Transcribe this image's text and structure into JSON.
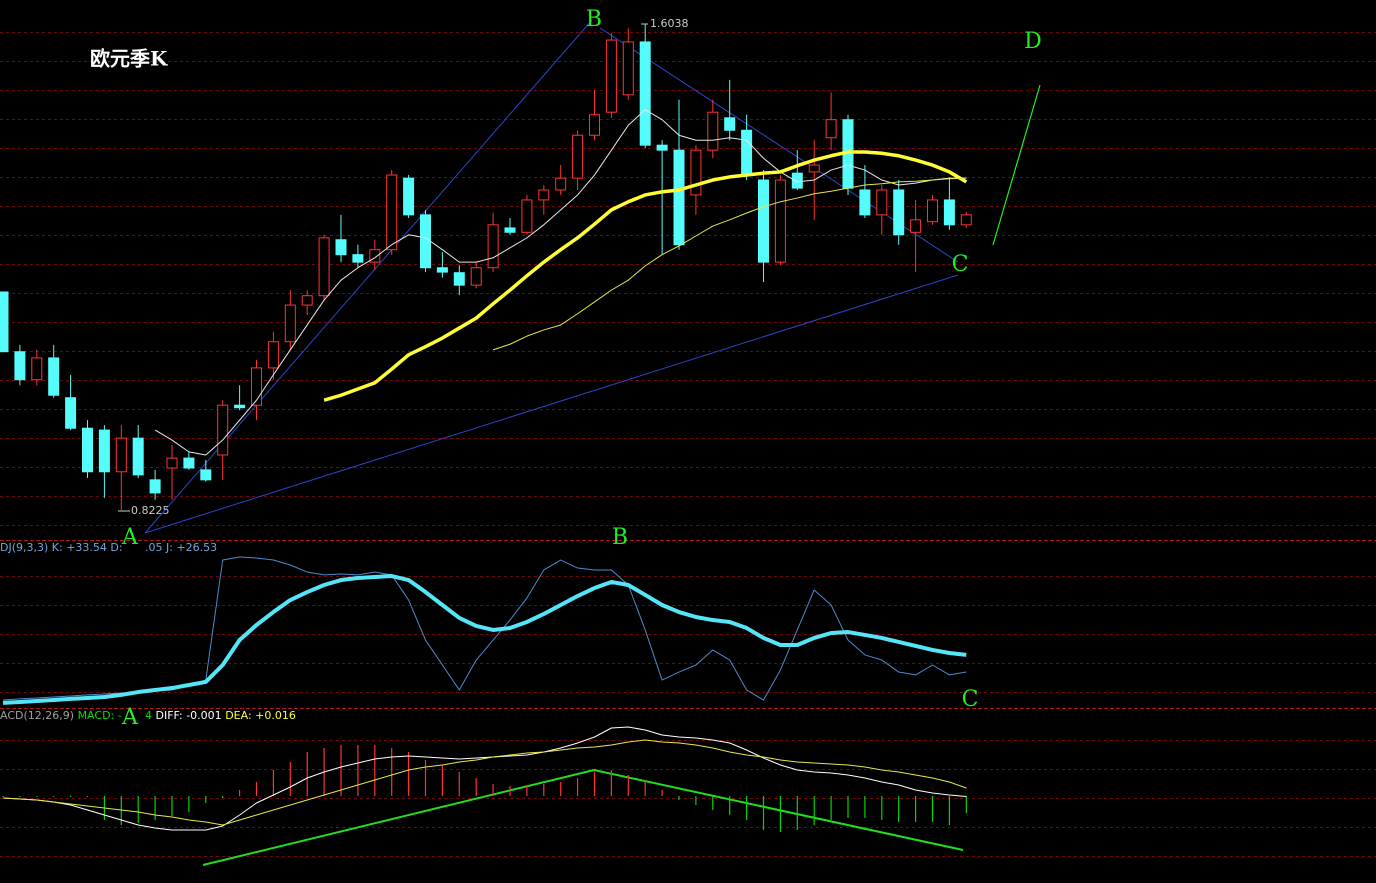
{
  "chart_data": [
    {
      "type": "candlestick",
      "title": "欧元季K",
      "up_color": "#ff3232",
      "down_color": "#54fcfc",
      "ylim": [
        0.7743,
        1.6424
      ],
      "open": [
        1.173,
        1.077,
        1.032,
        1.067,
        1.003,
        0.954,
        0.951,
        0.884,
        0.938,
        0.871,
        0.89,
        0.906,
        0.887,
        0.911,
        0.991,
        0.991,
        1.051,
        1.093,
        1.152,
        1.167,
        1.257,
        1.233,
        1.221,
        1.241,
        1.356,
        1.297,
        1.212,
        1.204,
        1.184,
        1.212,
        1.276,
        1.269,
        1.321,
        1.337,
        1.356,
        1.425,
        1.462,
        1.49,
        1.575,
        1.409,
        1.401,
        1.329,
        1.401,
        1.453,
        1.433,
        1.353,
        1.221,
        1.364,
        1.366,
        1.421,
        1.45,
        1.337,
        1.297,
        1.337,
        1.269,
        1.286,
        1.321,
        1.281
      ],
      "close": [
        1.077,
        1.032,
        1.067,
        1.007,
        0.954,
        0.884,
        0.884,
        0.938,
        0.879,
        0.85,
        0.906,
        0.89,
        0.871,
        0.991,
        0.987,
        1.051,
        1.093,
        1.152,
        1.167,
        1.26,
        1.233,
        1.221,
        1.241,
        1.361,
        1.297,
        1.212,
        1.205,
        1.184,
        1.212,
        1.281,
        1.269,
        1.321,
        1.337,
        1.356,
        1.425,
        1.458,
        1.578,
        1.575,
        1.409,
        1.401,
        1.249,
        1.401,
        1.462,
        1.433,
        1.361,
        1.221,
        1.353,
        1.34,
        1.377,
        1.45,
        1.34,
        1.297,
        1.337,
        1.265,
        1.289,
        1.321,
        1.281,
        1.297
      ],
      "high": [
        1.173,
        1.088,
        1.08,
        1.088,
        1.04,
        0.967,
        0.959,
        0.959,
        0.959,
        0.887,
        0.927,
        0.916,
        0.903,
        0.999,
        1.023,
        1.064,
        1.109,
        1.176,
        1.176,
        1.265,
        1.297,
        1.249,
        1.257,
        1.369,
        1.361,
        1.305,
        1.237,
        1.216,
        1.221,
        1.3,
        1.292,
        1.329,
        1.345,
        1.377,
        1.433,
        1.498,
        1.589,
        1.597,
        1.6038,
        1.417,
        1.482,
        1.409,
        1.482,
        1.514,
        1.458,
        1.369,
        1.361,
        1.401,
        1.417,
        1.494,
        1.458,
        1.377,
        1.345,
        1.353,
        1.321,
        1.329,
        1.356,
        1.302
      ],
      "low": [
        1.077,
        1.023,
        1.023,
        1.003,
        0.951,
        0.874,
        0.842,
        0.8225,
        0.874,
        0.839,
        0.839,
        0.887,
        0.868,
        0.871,
        0.983,
        0.967,
        1.032,
        1.08,
        1.136,
        1.16,
        1.221,
        1.212,
        1.208,
        1.233,
        1.292,
        1.205,
        1.196,
        1.168,
        1.179,
        1.205,
        1.265,
        1.265,
        1.297,
        1.329,
        1.337,
        1.417,
        1.453,
        1.482,
        1.404,
        1.233,
        1.241,
        1.297,
        1.388,
        1.417,
        1.353,
        1.189,
        1.216,
        1.337,
        1.289,
        1.401,
        1.329,
        1.292,
        1.265,
        1.249,
        1.205,
        1.281,
        1.273,
        1.276
      ],
      "lines": [
        {
          "color": "#e8e8e8",
          "width": 1,
          "values": [
            null,
            null,
            null,
            null,
            null,
            null,
            null,
            null,
            null,
            0.951,
            0.935,
            0.916,
            0.911,
            0.935,
            0.967,
            0.999,
            1.04,
            1.08,
            1.12,
            1.16,
            1.192,
            1.212,
            1.228,
            1.249,
            1.265,
            1.26,
            1.241,
            1.221,
            1.221,
            1.228,
            1.244,
            1.26,
            1.281,
            1.305,
            1.329,
            1.361,
            1.401,
            1.441,
            1.466,
            1.45,
            1.425,
            1.417,
            1.417,
            1.421,
            1.417,
            1.388,
            1.366,
            1.35,
            1.353,
            1.369,
            1.377,
            1.369,
            1.353,
            1.345,
            1.348,
            1.353,
            1.356,
            1.356
          ]
        },
        {
          "color": "#ffff33",
          "width": 3.5,
          "values": [
            null,
            null,
            null,
            null,
            null,
            null,
            null,
            null,
            null,
            null,
            null,
            null,
            null,
            null,
            null,
            null,
            null,
            null,
            null,
            0.999,
            1.007,
            1.017,
            1.027,
            1.049,
            1.072,
            1.085,
            1.099,
            1.115,
            1.131,
            1.154,
            1.176,
            1.199,
            1.221,
            1.241,
            1.26,
            1.282,
            1.305,
            1.318,
            1.329,
            1.334,
            1.337,
            1.345,
            1.353,
            1.358,
            1.361,
            1.364,
            1.366,
            1.376,
            1.385,
            1.392,
            1.398,
            1.398,
            1.396,
            1.392,
            1.385,
            1.377,
            1.366,
            1.35
          ]
        },
        {
          "color": "#e6e64c",
          "width": 1,
          "values": [
            null,
            null,
            null,
            null,
            null,
            null,
            null,
            null,
            null,
            null,
            null,
            null,
            null,
            null,
            null,
            null,
            null,
            null,
            null,
            null,
            null,
            null,
            null,
            null,
            null,
            null,
            null,
            null,
            null,
            1.08,
            1.089,
            1.102,
            1.112,
            1.12,
            1.138,
            1.157,
            1.176,
            1.192,
            1.215,
            1.233,
            1.247,
            1.263,
            1.279,
            1.289,
            1.3,
            1.31,
            1.318,
            1.324,
            1.331,
            1.335,
            1.34,
            1.345,
            1.347,
            1.35,
            1.351,
            1.353,
            1.355,
            1.356
          ]
        }
      ],
      "annotations": [
        "A",
        "B",
        "C",
        "D"
      ]
    },
    {
      "type": "line",
      "legend": [
        [
          {
            "text": "DJ(9,3,3) K: +33.54 D:",
            "color": "#6fa8dc"
          }
        ],
        [
          {
            "text": ".05 J: +26.53",
            "color": "#6fa8dc"
          }
        ]
      ],
      "ylim": [
        0,
        100
      ],
      "lines": [
        {
          "color": "#4a8ccc",
          "width": 1,
          "values": [
            3.1,
            3.8,
            4.4,
            5,
            5.6,
            6.3,
            6.9,
            7.5,
            8.1,
            8.8,
            9.4,
            12.5,
            15.6,
            90.6,
            92.5,
            91.9,
            90.6,
            87.5,
            83.1,
            81.3,
            81.9,
            81.3,
            83.1,
            81.3,
            65.6,
            40.6,
            25,
            9.4,
            28.1,
            40.6,
            53.1,
            66.9,
            84.4,
            90.6,
            85.6,
            84.4,
            84.4,
            75,
            46.9,
            15.6,
            20.6,
            25,
            34.4,
            28.1,
            9.4,
            3.1,
            21.9,
            46.9,
            71.9,
            62.5,
            40.6,
            31.3,
            28.1,
            20.6,
            18.8,
            25,
            18.8,
            20.6
          ]
        },
        {
          "color": "#54e6f8",
          "width": 4,
          "values": [
            1.3,
            1.9,
            2.5,
            3.1,
            3.8,
            4.4,
            5,
            6.3,
            8.1,
            9.4,
            10.6,
            12.5,
            14.4,
            25,
            40.6,
            50,
            58.1,
            65.6,
            70.6,
            75,
            78.1,
            79.4,
            80,
            80.6,
            78.1,
            70.6,
            62.5,
            54.4,
            49.4,
            46.9,
            48.1,
            51.9,
            56.9,
            62.5,
            68.1,
            73.1,
            76.9,
            75,
            68.8,
            62.5,
            58.1,
            55,
            53.1,
            51.9,
            48.1,
            41.9,
            37.5,
            37.5,
            41.9,
            45,
            45.6,
            43.8,
            41.9,
            39.4,
            36.9,
            34.4,
            32.5,
            31.3
          ]
        }
      ],
      "annotations": [
        "B",
        "C"
      ]
    },
    {
      "type": "macd",
      "legend": [
        [
          {
            "text": "ACD(12,26,9) ",
            "color": "#a0a0a0"
          },
          {
            "text": "MACD: -",
            "color": "#00e000"
          }
        ],
        [
          {
            "text": "4 ",
            "color": "#00e000"
          },
          {
            "text": "DIFF: -0.001 ",
            "color": "#ffffff"
          },
          {
            "text": "DEA: +0.016",
            "color": "#ffff33"
          }
        ]
      ],
      "ylim": [
        -0.168,
        0.152
      ],
      "up_color": "#ff3232",
      "down_color": "#00d800",
      "values": [
        -0.002,
        -0.002,
        -0.002,
        -0.002,
        -0.002,
        -0.002,
        -0.048,
        -0.058,
        -0.054,
        -0.048,
        -0.04,
        -0.032,
        -0.014,
        -0.004,
        0.012,
        0.028,
        0.052,
        0.068,
        0.088,
        0.096,
        0.102,
        0.102,
        0.102,
        0.096,
        0.088,
        0.072,
        0.062,
        0.048,
        0.036,
        0.024,
        0.02,
        0.02,
        0.024,
        0.028,
        0.036,
        0.048,
        0.052,
        0.042,
        0.032,
        0.012,
        -0.008,
        -0.018,
        -0.028,
        -0.038,
        -0.048,
        -0.068,
        -0.072,
        -0.068,
        -0.058,
        -0.048,
        -0.044,
        -0.044,
        -0.048,
        -0.052,
        -0.052,
        -0.052,
        -0.058,
        -0.034
      ],
      "lines": [
        {
          "color": "#ffffff",
          "width": 1,
          "values": [
            -0.004,
            -0.006,
            -0.008,
            -0.012,
            -0.018,
            -0.028,
            -0.038,
            -0.048,
            -0.058,
            -0.064,
            -0.068,
            -0.068,
            -0.068,
            -0.06,
            -0.038,
            -0.014,
            0.002,
            0.018,
            0.036,
            0.048,
            0.058,
            0.066,
            0.074,
            0.078,
            0.08,
            0.078,
            0.076,
            0.074,
            0.076,
            0.078,
            0.08,
            0.082,
            0.088,
            0.096,
            0.106,
            0.118,
            0.136,
            0.138,
            0.132,
            0.122,
            0.118,
            0.116,
            0.112,
            0.106,
            0.092,
            0.076,
            0.062,
            0.052,
            0.048,
            0.046,
            0.042,
            0.036,
            0.028,
            0.022,
            0.012,
            0.006,
            0.002,
            -0.001
          ]
        },
        {
          "color": "#e6e64c",
          "width": 1,
          "values": [
            -0.004,
            -0.006,
            -0.008,
            -0.012,
            -0.016,
            -0.02,
            -0.024,
            -0.028,
            -0.032,
            -0.038,
            -0.042,
            -0.048,
            -0.052,
            -0.058,
            -0.048,
            -0.038,
            -0.028,
            -0.018,
            -0.008,
            0.002,
            0.012,
            0.022,
            0.032,
            0.042,
            0.052,
            0.058,
            0.062,
            0.068,
            0.072,
            0.078,
            0.082,
            0.086,
            0.088,
            0.092,
            0.096,
            0.098,
            0.102,
            0.108,
            0.112,
            0.108,
            0.106,
            0.102,
            0.096,
            0.088,
            0.082,
            0.078,
            0.072,
            0.068,
            0.066,
            0.064,
            0.062,
            0.058,
            0.052,
            0.048,
            0.042,
            0.036,
            0.028,
            0.016
          ]
        }
      ],
      "annotations": [
        "A"
      ]
    }
  ]
}
